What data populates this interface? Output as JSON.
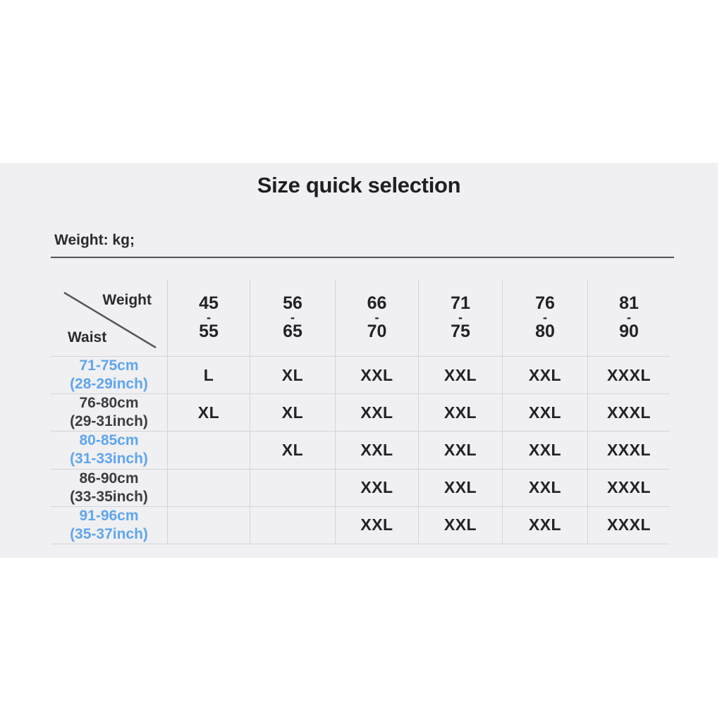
{
  "title": "Size quick selection",
  "weight_note": "Weight: kg;",
  "table": {
    "corner": {
      "top_right": "Weight",
      "bottom_left": "Waist"
    },
    "weight_columns": [
      {
        "from": "45",
        "to": "55"
      },
      {
        "from": "56",
        "to": "65"
      },
      {
        "from": "66",
        "to": "70"
      },
      {
        "from": "71",
        "to": "75"
      },
      {
        "from": "76",
        "to": "80"
      },
      {
        "from": "81",
        "to": "90"
      }
    ],
    "rows": [
      {
        "waist_cm": "71-75cm",
        "waist_inch": "(28-29inch)",
        "highlight": true,
        "sizes": [
          "L",
          "XL",
          "XXL",
          "XXL",
          "XXL",
          "XXXL"
        ]
      },
      {
        "waist_cm": "76-80cm",
        "waist_inch": "(29-31inch)",
        "highlight": false,
        "sizes": [
          "XL",
          "XL",
          "XXL",
          "XXL",
          "XXL",
          "XXXL"
        ]
      },
      {
        "waist_cm": "80-85cm",
        "waist_inch": "(31-33inch)",
        "highlight": true,
        "sizes": [
          "",
          "XL",
          "XXL",
          "XXL",
          "XXL",
          "XXXL"
        ]
      },
      {
        "waist_cm": "86-90cm",
        "waist_inch": "(33-35inch)",
        "highlight": false,
        "sizes": [
          "",
          "",
          "XXL",
          "XXL",
          "XXL",
          "XXXL"
        ]
      },
      {
        "waist_cm": "91-96cm",
        "waist_inch": "(35-37inch)",
        "highlight": true,
        "sizes": [
          "",
          "",
          "XXL",
          "XXL",
          "XXL",
          "XXXL"
        ]
      }
    ]
  },
  "colors": {
    "panel_bg": "#f0f0f3",
    "grid_line": "#d3d4d8",
    "rule_dark": "#515257",
    "dark_text": "#232326",
    "label_dark": "#3c3d41",
    "highlight_blue": "#60a5ee"
  },
  "chart_data": {
    "type": "table",
    "title": "Size quick selection",
    "note": "Weight: kg;",
    "column_axis_label": "Weight",
    "row_axis_label": "Waist",
    "columns_weight_kg": [
      "45-55",
      "56-65",
      "66-70",
      "71-75",
      "76-80",
      "81-90"
    ],
    "rows_waist": [
      "71-75cm (28-29inch)",
      "76-80cm (29-31inch)",
      "80-85cm (31-33inch)",
      "86-90cm (33-35inch)",
      "91-96cm (35-37inch)"
    ],
    "values": [
      [
        "L",
        "XL",
        "XXL",
        "XXL",
        "XXL",
        "XXXL"
      ],
      [
        "XL",
        "XL",
        "XXL",
        "XXL",
        "XXL",
        "XXXL"
      ],
      [
        "",
        "XL",
        "XXL",
        "XXL",
        "XXL",
        "XXXL"
      ],
      [
        "",
        "",
        "XXL",
        "XXL",
        "XXL",
        "XXXL"
      ],
      [
        "",
        "",
        "XXL",
        "XXL",
        "XXL",
        "XXXL"
      ]
    ],
    "layout": {
      "highlighted_row_indexes": [
        0,
        2,
        4
      ],
      "grid": "light vertical and horizontal separators, no outer left/right border"
    }
  }
}
